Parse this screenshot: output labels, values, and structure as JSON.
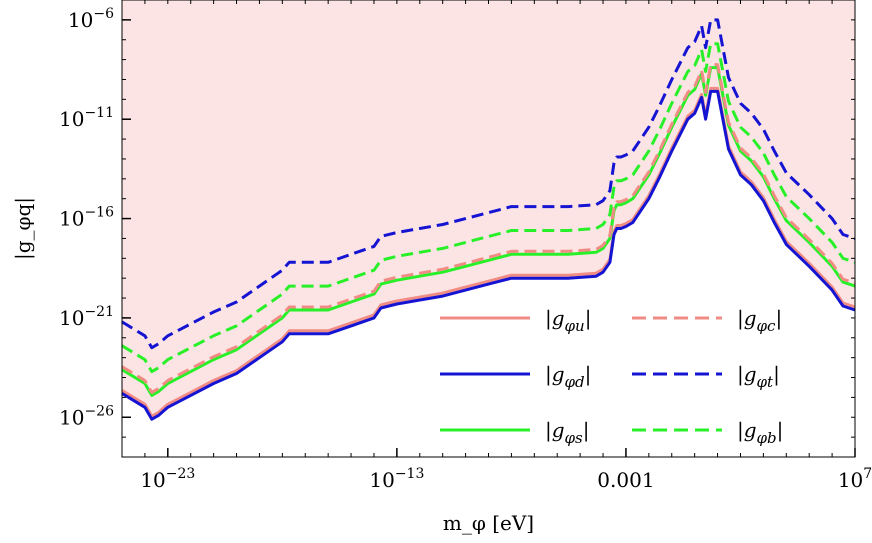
{
  "chart_data": {
    "type": "line",
    "xlabel": "m_φ [eV]",
    "ylabel": "|g_φq|",
    "x_scale": "log10",
    "y_scale": "log10",
    "xlim": [
      1e-25,
      10000000.0
    ],
    "ylim": [
      1e-28,
      1e-05
    ],
    "x_ticks": [
      {
        "value": 1e-23,
        "label": "10",
        "exp": "−23"
      },
      {
        "value": 1e-13,
        "label": "10",
        "exp": "−13"
      },
      {
        "value": 0.001,
        "label": "0.001",
        "exp": ""
      },
      {
        "value": 10000000.0,
        "label": "10",
        "exp": "7"
      }
    ],
    "y_ticks": [
      {
        "value": 1e-06,
        "label": "10",
        "exp": "−6"
      },
      {
        "value": 1e-11,
        "label": "10",
        "exp": "−11"
      },
      {
        "value": 1e-16,
        "label": "10",
        "exp": "−16"
      },
      {
        "value": 1e-21,
        "label": "10",
        "exp": "−21"
      },
      {
        "value": 1e-26,
        "label": "10",
        "exp": "−26"
      }
    ],
    "excluded_region": {
      "color": "#fde4e4",
      "boundary": "|g_φu|"
    },
    "colors": {
      "u": "#f08c84",
      "c": "#f08c84",
      "d": "#1414d2",
      "t": "#1414d2",
      "s": "#28f028",
      "b": "#28f028"
    },
    "base_curve": {
      "x": [
        1e-25,
        1e-24,
        2e-24,
        4e-24,
        1e-23,
        1e-22,
        1e-21,
        1e-20,
        1e-19,
        1e-18,
        2e-18,
        1e-17,
        1e-16,
        1e-15,
        1e-14,
        2e-14,
        1e-13,
        1e-12,
        1e-11,
        1e-10,
        1e-09,
        1e-08,
        1e-07,
        1e-06,
        3e-06,
        5e-05,
        0.0001,
        0.0002,
        0.0003,
        0.0004,
        0.0006,
        0.001,
        0.002,
        0.01,
        0.03,
        0.1,
        0.5,
        1,
        2,
        3,
        5,
        10,
        30,
        100,
        300,
        1000,
        3000,
        10000.0,
        100000.0,
        1000000.0,
        3000000.0,
        10000000.0
      ],
      "y": [
        -24.8,
        -25.5,
        -26.1,
        -25.9,
        -25.5,
        -24.9,
        -24.3,
        -23.8,
        -23.0,
        -22.2,
        -21.8,
        -21.8,
        -21.8,
        -21.4,
        -21.0,
        -20.5,
        -20.3,
        -20.1,
        -19.9,
        -19.6,
        -19.3,
        -19.0,
        -19.0,
        -19.0,
        -19.0,
        -18.9,
        -18.7,
        -18.2,
        -16.8,
        -16.5,
        -16.5,
        -16.4,
        -16.2,
        -15.0,
        -13.9,
        -12.6,
        -11.0,
        -10.7,
        -9.9,
        -11.0,
        -9.6,
        -9.6,
        -12.5,
        -13.8,
        -14.3,
        -15.1,
        -16.2,
        -17.3,
        -18.4,
        -19.6,
        -20.4,
        -20.6
      ]
    },
    "series": [
      {
        "name": "|g_φu|",
        "key": "u",
        "dash": "solid",
        "offset": 0.15
      },
      {
        "name": "|g_φd|",
        "key": "d",
        "dash": "solid",
        "offset": 0
      },
      {
        "name": "|g_φs|",
        "key": "s",
        "dash": "solid",
        "offset": 1.2
      },
      {
        "name": "|g_φc|",
        "key": "c",
        "dash": "dashed",
        "offset": 1.35
      },
      {
        "name": "|g_φt|",
        "key": "t",
        "dash": "dashed",
        "offset": 3.6
      },
      {
        "name": "|g_φb|",
        "key": "b",
        "dash": "dashed",
        "offset": 2.4
      }
    ],
    "legend": [
      {
        "name": "|g_φu|",
        "key": "u",
        "dash": "solid",
        "base": "|g",
        "sub": "φu",
        "close": "|"
      },
      {
        "name": "|g_φc|",
        "key": "c",
        "dash": "dashed",
        "base": "|g",
        "sub": "φc",
        "close": "|"
      },
      {
        "name": "|g_φd|",
        "key": "d",
        "dash": "solid",
        "base": "|g",
        "sub": "φd",
        "close": "|"
      },
      {
        "name": "|g_φt|",
        "key": "t",
        "dash": "dashed",
        "base": "|g",
        "sub": "φt",
        "close": "|"
      },
      {
        "name": "|g_φs|",
        "key": "s",
        "dash": "solid",
        "base": "|g",
        "sub": "φs",
        "close": "|"
      },
      {
        "name": "|g_φb|",
        "key": "b",
        "dash": "dashed",
        "base": "|g",
        "sub": "φb",
        "close": "|"
      }
    ],
    "legend_placement": "bottom-right",
    "grid": false
  }
}
